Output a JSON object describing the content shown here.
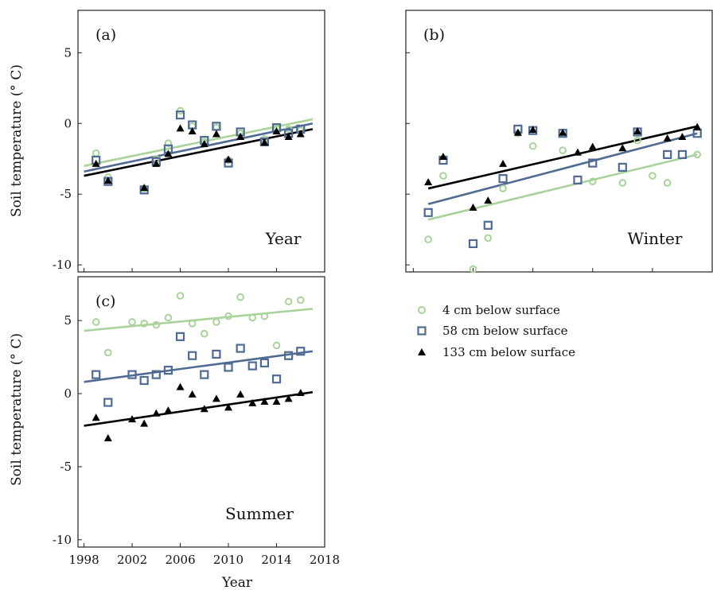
{
  "colors": {
    "cm4": "#a9d39a",
    "cm58": "#4f6a93",
    "cm133": "#000000"
  },
  "legend": [
    {
      "key": "cm4",
      "label": "4 cm below surface",
      "marker": "circle"
    },
    {
      "key": "cm58",
      "label": "58 cm below surface",
      "marker": "square"
    },
    {
      "key": "cm133",
      "label": "133 cm below surface",
      "marker": "triangle"
    }
  ],
  "axes": {
    "ylabel": "Soil temperature (° C)",
    "xlabel": "Year"
  },
  "chart_data": [
    {
      "type": "scatter",
      "panel": "(a)",
      "label": "Year",
      "xlim": [
        1997.5,
        2018
      ],
      "ylim": [
        -10.5,
        8
      ],
      "xticks": [],
      "yticks": [
        5,
        0,
        -5,
        -10
      ],
      "series": [
        {
          "key": "cm4",
          "points": [
            [
              1999,
              -2.1
            ],
            [
              2000,
              -3.8
            ],
            [
              2003,
              -4.6
            ],
            [
              2004,
              -2.5
            ],
            [
              2005,
              -1.4
            ],
            [
              2006,
              0.9
            ],
            [
              2007,
              -0.2
            ],
            [
              2008,
              -1.3
            ],
            [
              2009,
              -0.3
            ],
            [
              2010,
              -2.6
            ],
            [
              2011,
              -0.7
            ],
            [
              2013,
              -1.1
            ],
            [
              2014,
              -0.3
            ],
            [
              2015,
              -0.4
            ],
            [
              2016,
              -0.5
            ]
          ],
          "trend": [
            [
              1998,
              -3.0
            ],
            [
              2017,
              0.3
            ]
          ]
        },
        {
          "key": "cm58",
          "points": [
            [
              1999,
              -2.6
            ],
            [
              2000,
              -4.1
            ],
            [
              2003,
              -4.7
            ],
            [
              2004,
              -2.7
            ],
            [
              2005,
              -1.8
            ],
            [
              2006,
              0.6
            ],
            [
              2007,
              -0.1
            ],
            [
              2008,
              -1.2
            ],
            [
              2009,
              -0.2
            ],
            [
              2010,
              -2.8
            ],
            [
              2011,
              -0.6
            ],
            [
              2013,
              -1.3
            ],
            [
              2014,
              -0.3
            ],
            [
              2015,
              -0.7
            ],
            [
              2016,
              -0.4
            ]
          ],
          "trend": [
            [
              1998,
              -3.4
            ],
            [
              2017,
              0.0
            ]
          ]
        },
        {
          "key": "cm133",
          "points": [
            [
              1999,
              -2.9
            ],
            [
              2000,
              -4.1
            ],
            [
              2003,
              -4.6
            ],
            [
              2004,
              -2.9
            ],
            [
              2005,
              -2.2
            ],
            [
              2006,
              -0.4
            ],
            [
              2007,
              -0.6
            ],
            [
              2008,
              -1.5
            ],
            [
              2009,
              -0.8
            ],
            [
              2010,
              -2.6
            ],
            [
              2011,
              -1.0
            ],
            [
              2013,
              -1.4
            ],
            [
              2014,
              -0.6
            ],
            [
              2015,
              -1.0
            ],
            [
              2016,
              -0.8
            ]
          ],
          "trend": [
            [
              1998,
              -3.7
            ],
            [
              2017,
              -0.4
            ]
          ]
        }
      ]
    },
    {
      "type": "scatter",
      "panel": "(b)",
      "label": "Winter",
      "xlim": [
        1997.5,
        2018
      ],
      "ylim": [
        -10.5,
        8
      ],
      "xticks": [],
      "yticks": [],
      "series": [
        {
          "key": "cm4",
          "points": [
            [
              1999,
              -8.2
            ],
            [
              2000,
              -3.7
            ],
            [
              2002,
              -10.3
            ],
            [
              2003,
              -8.1
            ],
            [
              2004,
              -4.6
            ],
            [
              2005,
              -0.7
            ],
            [
              2006,
              -1.6
            ],
            [
              2008,
              -1.9
            ],
            [
              2010,
              -4.1
            ],
            [
              2012,
              -4.2
            ],
            [
              2013,
              -1.2
            ],
            [
              2014,
              -3.7
            ],
            [
              2015,
              -4.2
            ],
            [
              2017,
              -2.2
            ]
          ],
          "trend": [
            [
              1999,
              -6.8
            ],
            [
              2017,
              -2.2
            ]
          ]
        },
        {
          "key": "cm58",
          "points": [
            [
              1999,
              -6.3
            ],
            [
              2000,
              -2.6
            ],
            [
              2002,
              -8.5
            ],
            [
              2003,
              -7.2
            ],
            [
              2004,
              -3.9
            ],
            [
              2005,
              -0.4
            ],
            [
              2006,
              -0.5
            ],
            [
              2008,
              -0.7
            ],
            [
              2009,
              -4.0
            ],
            [
              2010,
              -2.8
            ],
            [
              2012,
              -3.1
            ],
            [
              2013,
              -0.6
            ],
            [
              2015,
              -2.2
            ],
            [
              2016,
              -2.2
            ],
            [
              2017,
              -0.7
            ]
          ],
          "trend": [
            [
              1999,
              -5.7
            ],
            [
              2017,
              -0.7
            ]
          ]
        },
        {
          "key": "cm133",
          "points": [
            [
              1999,
              -4.2
            ],
            [
              2000,
              -2.4
            ],
            [
              2002,
              -6.0
            ],
            [
              2003,
              -5.5
            ],
            [
              2004,
              -2.9
            ],
            [
              2005,
              -0.7
            ],
            [
              2006,
              -0.5
            ],
            [
              2008,
              -0.7
            ],
            [
              2009,
              -2.1
            ],
            [
              2010,
              -1.7
            ],
            [
              2012,
              -1.8
            ],
            [
              2013,
              -0.6
            ],
            [
              2015,
              -1.1
            ],
            [
              2016,
              -1.0
            ],
            [
              2017,
              -0.3
            ]
          ],
          "trend": [
            [
              1999,
              -4.6
            ],
            [
              2017,
              -0.2
            ]
          ]
        }
      ]
    },
    {
      "type": "scatter",
      "panel": "(c)",
      "label": "Summer",
      "xlim": [
        1997.5,
        2018
      ],
      "ylim": [
        -10.5,
        8
      ],
      "xticks": [
        1998,
        2002,
        2006,
        2010,
        2014,
        2018
      ],
      "yticks": [
        5,
        0,
        -5,
        -10
      ],
      "series": [
        {
          "key": "cm4",
          "points": [
            [
              1999,
              4.9
            ],
            [
              2000,
              2.8
            ],
            [
              2002,
              4.9
            ],
            [
              2003,
              4.8
            ],
            [
              2004,
              4.7
            ],
            [
              2005,
              5.2
            ],
            [
              2006,
              6.7
            ],
            [
              2007,
              4.8
            ],
            [
              2008,
              4.1
            ],
            [
              2009,
              4.9
            ],
            [
              2010,
              5.3
            ],
            [
              2011,
              6.6
            ],
            [
              2012,
              5.2
            ],
            [
              2013,
              5.3
            ],
            [
              2014,
              3.3
            ],
            [
              2015,
              6.3
            ],
            [
              2016,
              6.4
            ]
          ],
          "trend": [
            [
              1998,
              4.3
            ],
            [
              2017,
              5.8
            ]
          ]
        },
        {
          "key": "cm58",
          "points": [
            [
              1999,
              1.3
            ],
            [
              2000,
              -0.6
            ],
            [
              2002,
              1.3
            ],
            [
              2003,
              0.9
            ],
            [
              2004,
              1.3
            ],
            [
              2005,
              1.6
            ],
            [
              2006,
              3.9
            ],
            [
              2007,
              2.6
            ],
            [
              2008,
              1.3
            ],
            [
              2009,
              2.7
            ],
            [
              2010,
              1.8
            ],
            [
              2011,
              3.1
            ],
            [
              2012,
              1.9
            ],
            [
              2013,
              2.1
            ],
            [
              2014,
              1.0
            ],
            [
              2015,
              2.6
            ],
            [
              2016,
              2.9
            ]
          ],
          "trend": [
            [
              1998,
              0.8
            ],
            [
              2017,
              2.9
            ]
          ]
        },
        {
          "key": "cm133",
          "points": [
            [
              1999,
              -1.7
            ],
            [
              2000,
              -3.1
            ],
            [
              2002,
              -1.8
            ],
            [
              2003,
              -2.1
            ],
            [
              2004,
              -1.4
            ],
            [
              2005,
              -1.2
            ],
            [
              2006,
              0.4
            ],
            [
              2007,
              -0.1
            ],
            [
              2008,
              -1.1
            ],
            [
              2009,
              -0.4
            ],
            [
              2010,
              -1.0
            ],
            [
              2011,
              -0.1
            ],
            [
              2012,
              -0.7
            ],
            [
              2013,
              -0.6
            ],
            [
              2014,
              -0.6
            ],
            [
              2015,
              -0.4
            ],
            [
              2016,
              -0.0
            ]
          ],
          "trend": [
            [
              1998,
              -2.2
            ],
            [
              2017,
              0.1
            ]
          ]
        }
      ]
    }
  ]
}
